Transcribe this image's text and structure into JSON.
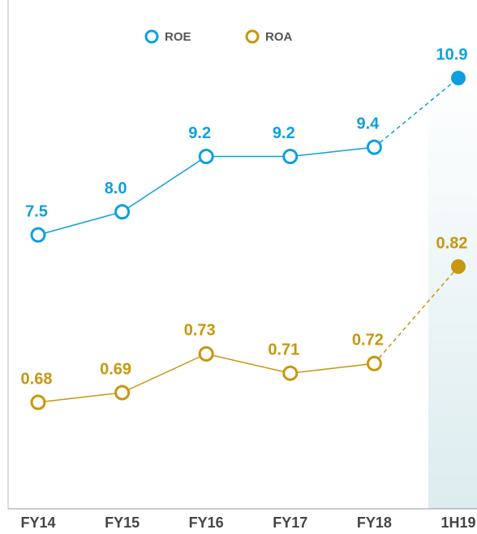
{
  "chart_data": {
    "type": "line",
    "categories": [
      "FY14",
      "FY15",
      "FY16",
      "FY17",
      "FY18",
      "1H19"
    ],
    "series": [
      {
        "name": "ROE",
        "color": "#0ea0de",
        "values": [
          7.5,
          8.0,
          9.2,
          9.2,
          9.4,
          10.9
        ],
        "value_labels": [
          "7.5",
          "8.0",
          "9.2",
          "9.2",
          "9.4",
          "10.9"
        ]
      },
      {
        "name": "ROA",
        "color": "#c8960f",
        "values": [
          0.68,
          0.69,
          0.73,
          0.71,
          0.72,
          0.82
        ]
      }
    ]
  }
}
